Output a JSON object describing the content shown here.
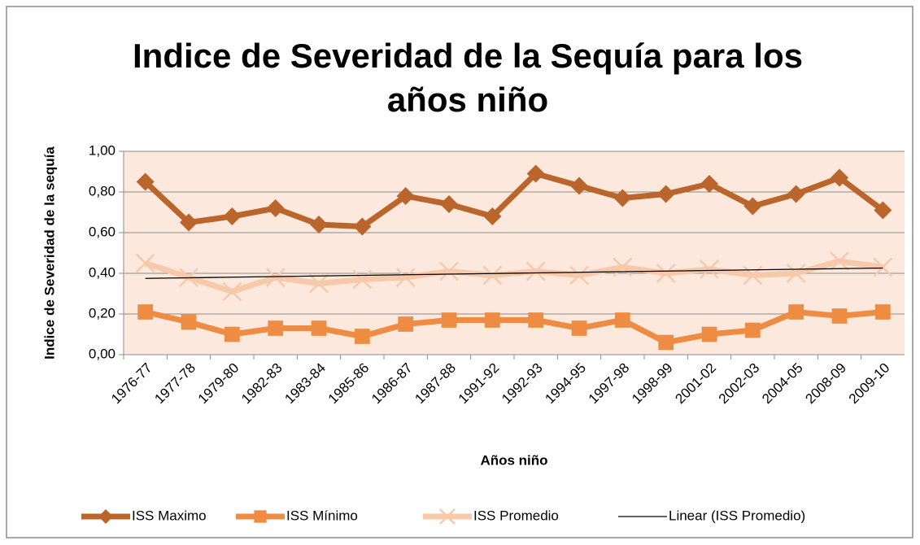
{
  "chart_data": {
    "type": "line",
    "title": "Indice de Severidad de la Sequía para los años niño",
    "x_label": "Años niño",
    "y_label": "Indice de Severidad de la sequía",
    "categories": [
      "1976-77",
      "1977-78",
      "1979-80",
      "1982-83",
      "1983-84",
      "1985-86",
      "1986-87",
      "1987-88",
      "1991-92",
      "1992-93",
      "1994-95",
      "1997-98",
      "1998-99",
      "2001-02",
      "2002-03",
      "2004-05",
      "2008-09",
      "2009-10"
    ],
    "series": [
      {
        "name": "ISS Maximo",
        "color": "#b9652c",
        "marker": "diamond",
        "width": 7,
        "values": [
          0.85,
          0.65,
          0.68,
          0.72,
          0.64,
          0.63,
          0.78,
          0.74,
          0.68,
          0.89,
          0.83,
          0.77,
          0.79,
          0.84,
          0.73,
          0.79,
          0.87,
          0.71
        ]
      },
      {
        "name": "ISS Mínimo",
        "color": "#ee8c44",
        "marker": "square",
        "width": 7,
        "values": [
          0.21,
          0.16,
          0.1,
          0.13,
          0.13,
          0.09,
          0.15,
          0.17,
          0.17,
          0.17,
          0.13,
          0.17,
          0.06,
          0.1,
          0.12,
          0.21,
          0.19,
          0.21
        ]
      },
      {
        "name": "ISS Promedio",
        "color": "#f7c9ab",
        "marker": "x",
        "width": 7,
        "values": [
          0.45,
          0.38,
          0.31,
          0.38,
          0.35,
          0.37,
          0.38,
          0.41,
          0.39,
          0.41,
          0.39,
          0.43,
          0.4,
          0.42,
          0.39,
          0.4,
          0.46,
          0.43
        ]
      },
      {
        "name": "Linear (ISS Promedio)",
        "color": "#000000",
        "marker": "none",
        "width": 1.3,
        "values": [
          0.375,
          0.378,
          0.381,
          0.384,
          0.387,
          0.39,
          0.393,
          0.396,
          0.399,
          0.402,
          0.405,
          0.408,
          0.411,
          0.414,
          0.417,
          0.42,
          0.423,
          0.426
        ]
      }
    ],
    "ylim": [
      0,
      1
    ],
    "yticks": [
      {
        "value": 0,
        "label": "0,00"
      },
      {
        "value": 0.2,
        "label": "0,20"
      },
      {
        "value": 0.4,
        "label": "0,40"
      },
      {
        "value": 0.6,
        "label": "0,60"
      },
      {
        "value": 0.8,
        "label": "0,80"
      },
      {
        "value": 1,
        "label": "1,00"
      }
    ],
    "grid": true,
    "legend": "bottom"
  }
}
